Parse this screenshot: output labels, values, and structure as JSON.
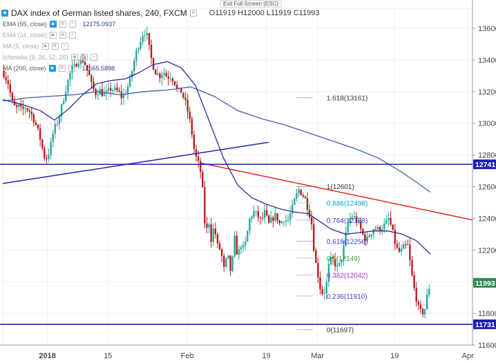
{
  "header": {
    "exit_fullscreen": "Exit Full Screen (ESC)",
    "title": "DAX index of German listed shares, 240, FXCM",
    "ohlc": "O11919  H12000  L11919  C11993"
  },
  "indicators": [
    {
      "name": "EMA (55, close)",
      "value": "12175.0937",
      "visible": true
    },
    {
      "name": "EMA (34, close)",
      "value": "",
      "visible": false
    },
    {
      "name": "MA (5, close)",
      "value": "",
      "visible": false
    },
    {
      "name": "Ichimoku (9, 26, 52, 26)",
      "value": "",
      "visible": false
    },
    {
      "name": "MA (200, close)",
      "value": "12565.5898",
      "visible": true
    }
  ],
  "chart_data": {
    "type": "candlestick",
    "symbol": "DAX index of German listed shares",
    "timeframe": "240",
    "source": "FXCM",
    "ylim": [
      11600,
      13700
    ],
    "y_ticks": [
      11600,
      11800,
      12000,
      12200,
      12400,
      12600,
      12800,
      13000,
      13200,
      13400,
      13600
    ],
    "x_ticks": [
      "2018",
      "15",
      "Feb",
      "19",
      "Mar",
      "19",
      "Apr"
    ],
    "x_tick_pos": [
      0.095,
      0.224,
      0.393,
      0.561,
      0.67,
      0.834,
      0.99
    ],
    "price_path": [
      [
        0.0,
        13330
      ],
      [
        0.012,
        13250
      ],
      [
        0.02,
        13130
      ],
      [
        0.028,
        13090
      ],
      [
        0.034,
        13110
      ],
      [
        0.04,
        13080
      ],
      [
        0.048,
        13100
      ],
      [
        0.056,
        13080
      ],
      [
        0.064,
        13040
      ],
      [
        0.072,
        12980
      ],
      [
        0.08,
        12900
      ],
      [
        0.088,
        12790
      ],
      [
        0.094,
        12780
      ],
      [
        0.1,
        12830
      ],
      [
        0.108,
        12950
      ],
      [
        0.118,
        13020
      ],
      [
        0.128,
        13140
      ],
      [
        0.138,
        13260
      ],
      [
        0.146,
        13340
      ],
      [
        0.154,
        13360
      ],
      [
        0.16,
        13400
      ],
      [
        0.166,
        13390
      ],
      [
        0.172,
        13400
      ],
      [
        0.178,
        13350
      ],
      [
        0.184,
        13300
      ],
      [
        0.19,
        13230
      ],
      [
        0.198,
        13190
      ],
      [
        0.206,
        13210
      ],
      [
        0.214,
        13180
      ],
      [
        0.222,
        13190
      ],
      [
        0.23,
        13220
      ],
      [
        0.238,
        13210
      ],
      [
        0.246,
        13200
      ],
      [
        0.254,
        13160
      ],
      [
        0.262,
        13200
      ],
      [
        0.27,
        13260
      ],
      [
        0.278,
        13370
      ],
      [
        0.286,
        13470
      ],
      [
        0.294,
        13530
      ],
      [
        0.3,
        13580
      ],
      [
        0.306,
        13570
      ],
      [
        0.31,
        13500
      ],
      [
        0.318,
        13380
      ],
      [
        0.326,
        13320
      ],
      [
        0.334,
        13300
      ],
      [
        0.342,
        13330
      ],
      [
        0.35,
        13290
      ],
      [
        0.358,
        13300
      ],
      [
        0.366,
        13260
      ],
      [
        0.372,
        13200
      ],
      [
        0.38,
        13200
      ],
      [
        0.388,
        13140
      ],
      [
        0.396,
        13050
      ],
      [
        0.402,
        12950
      ],
      [
        0.408,
        12820
      ],
      [
        0.414,
        12760
      ],
      [
        0.42,
        12720
      ],
      [
        0.426,
        12560
      ],
      [
        0.432,
        12280
      ],
      [
        0.438,
        12400
      ],
      [
        0.444,
        12260
      ],
      [
        0.45,
        12360
      ],
      [
        0.456,
        12230
      ],
      [
        0.464,
        12200
      ],
      [
        0.472,
        12060
      ],
      [
        0.478,
        12180
      ],
      [
        0.486,
        12050
      ],
      [
        0.494,
        12280
      ],
      [
        0.5,
        12150
      ],
      [
        0.506,
        12240
      ],
      [
        0.514,
        12200
      ],
      [
        0.52,
        12300
      ],
      [
        0.526,
        12400
      ],
      [
        0.534,
        12440
      ],
      [
        0.542,
        12420
      ],
      [
        0.55,
        12380
      ],
      [
        0.558,
        12440
      ],
      [
        0.566,
        12360
      ],
      [
        0.574,
        12400
      ],
      [
        0.582,
        12420
      ],
      [
        0.59,
        12360
      ],
      [
        0.598,
        12400
      ],
      [
        0.606,
        12380
      ],
      [
        0.614,
        12440
      ],
      [
        0.622,
        12520
      ],
      [
        0.63,
        12580
      ],
      [
        0.636,
        12560
      ],
      [
        0.644,
        12520
      ],
      [
        0.652,
        12440
      ],
      [
        0.658,
        12360
      ],
      [
        0.664,
        12150
      ],
      [
        0.67,
        12060
      ],
      [
        0.676,
        11960
      ],
      [
        0.682,
        11920
      ],
      [
        0.688,
        11960
      ],
      [
        0.694,
        12100
      ],
      [
        0.7,
        12150
      ],
      [
        0.706,
        12120
      ],
      [
        0.712,
        12090
      ],
      [
        0.718,
        12110
      ],
      [
        0.726,
        12220
      ],
      [
        0.734,
        12360
      ],
      [
        0.742,
        12420
      ],
      [
        0.75,
        12400
      ],
      [
        0.758,
        12360
      ],
      [
        0.766,
        12300
      ],
      [
        0.774,
        12260
      ],
      [
        0.782,
        12300
      ],
      [
        0.79,
        12340
      ],
      [
        0.798,
        12330
      ],
      [
        0.806,
        12340
      ],
      [
        0.814,
        12360
      ],
      [
        0.822,
        12400
      ],
      [
        0.83,
        12310
      ],
      [
        0.838,
        12210
      ],
      [
        0.846,
        12180
      ],
      [
        0.854,
        12220
      ],
      [
        0.862,
        12230
      ],
      [
        0.868,
        12100
      ],
      [
        0.874,
        11980
      ],
      [
        0.88,
        11900
      ],
      [
        0.886,
        11820
      ],
      [
        0.892,
        11800
      ],
      [
        0.898,
        11820
      ],
      [
        0.904,
        11919
      ],
      [
        0.91,
        11993
      ]
    ],
    "ema55_path": [
      [
        0.0,
        13150
      ],
      [
        0.04,
        13120
      ],
      [
        0.08,
        13080
      ],
      [
        0.11,
        13020
      ],
      [
        0.14,
        13090
      ],
      [
        0.17,
        13180
      ],
      [
        0.2,
        13250
      ],
      [
        0.23,
        13270
      ],
      [
        0.26,
        13280
      ],
      [
        0.29,
        13320
      ],
      [
        0.32,
        13370
      ],
      [
        0.35,
        13390
      ],
      [
        0.38,
        13350
      ],
      [
        0.41,
        13240
      ],
      [
        0.44,
        13010
      ],
      [
        0.47,
        12780
      ],
      [
        0.5,
        12610
      ],
      [
        0.53,
        12530
      ],
      [
        0.56,
        12490
      ],
      [
        0.59,
        12460
      ],
      [
        0.62,
        12440
      ],
      [
        0.65,
        12430
      ],
      [
        0.67,
        12390
      ],
      [
        0.7,
        12330
      ],
      [
        0.73,
        12300
      ],
      [
        0.76,
        12310
      ],
      [
        0.79,
        12320
      ],
      [
        0.82,
        12320
      ],
      [
        0.85,
        12300
      ],
      [
        0.88,
        12260
      ],
      [
        0.91,
        12175
      ]
    ],
    "ma200_path": [
      [
        0.0,
        13140
      ],
      [
        0.05,
        13160
      ],
      [
        0.1,
        13170
      ],
      [
        0.15,
        13180
      ],
      [
        0.2,
        13200
      ],
      [
        0.25,
        13180
      ],
      [
        0.3,
        13200
      ],
      [
        0.35,
        13210
      ],
      [
        0.4,
        13230
      ],
      [
        0.45,
        13170
      ],
      [
        0.5,
        13080
      ],
      [
        0.55,
        13030
      ],
      [
        0.6,
        12990
      ],
      [
        0.65,
        12940
      ],
      [
        0.7,
        12890
      ],
      [
        0.75,
        12840
      ],
      [
        0.8,
        12780
      ],
      [
        0.85,
        12690
      ],
      [
        0.88,
        12630
      ],
      [
        0.91,
        12565
      ]
    ],
    "trendlines": [
      {
        "color": "#1e1eb8",
        "points": [
          [
            0.0,
            12620
          ],
          [
            0.566,
            12880
          ]
        ]
      },
      {
        "color": "#e8201e",
        "points": [
          [
            0.42,
            12750
          ],
          [
            1.0,
            12390
          ]
        ]
      }
    ],
    "horizontal_levels": [
      {
        "value": 12741,
        "label": "12741",
        "color": "#1e1eb8"
      },
      {
        "value": 11731,
        "label": "11731",
        "color": "#1e1eb8"
      }
    ],
    "last_price": {
      "value": 11993,
      "label": "11993"
    },
    "fibonacci": [
      {
        "level": "1.618",
        "price": 13161,
        "label": "1.618(13161)",
        "color": "#333333"
      },
      {
        "level": "1",
        "price": 12601,
        "label": "1(12601)",
        "color": "#333333"
      },
      {
        "level": "0.886",
        "price": 12498,
        "label": "0.886(12498)",
        "color": "#00a6c8"
      },
      {
        "level": "0.764",
        "price": 12388,
        "label": "0.764(12388)",
        "color": "#3c3ccf"
      },
      {
        "level": "0.618",
        "price": 12256,
        "label": "0.618(12256)",
        "color": "#3c3ccf"
      },
      {
        "level": "0.5",
        "price": 12149,
        "label": "0.5(12149)",
        "color": "#3aa23a"
      },
      {
        "level": "0.382",
        "price": 12042,
        "label": "0.382(12042)",
        "color": "#9b2fc9"
      },
      {
        "level": "0.236",
        "price": 11910,
        "label": "0.236(11910)",
        "color": "#3c3ccf"
      },
      {
        "level": "0",
        "price": 11697,
        "label": "0(11697)",
        "color": "#333333"
      }
    ],
    "fib_x_range": [
      0.626,
      0.66
    ]
  },
  "colors": {
    "up": "#26a69a",
    "down": "#b71c1c",
    "ema55": "#2b2b9a",
    "ma200": "#3b5ea8",
    "level_box": "#1e1eb8",
    "last_box": "#2e8b57"
  }
}
